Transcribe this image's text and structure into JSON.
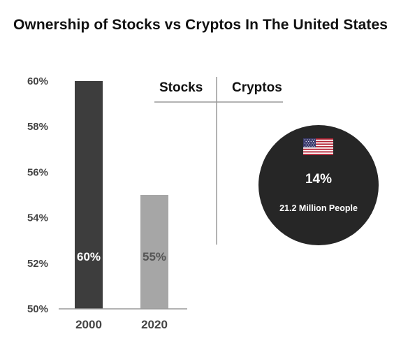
{
  "title": "Ownership of Stocks vs Cryptos In The United States",
  "table": {
    "stocks_label": "Stocks",
    "cryptos_label": "Cryptos"
  },
  "crypto_stat": {
    "percent": "14%",
    "people": "21.2 Million People",
    "flag_icon": "us-flag-icon"
  },
  "colors": {
    "bar_2000": "#3d3d3d",
    "bar_2020": "#a6a6a6",
    "circle": "#262626"
  },
  "chart_data": {
    "type": "bar",
    "categories": [
      "2000",
      "2020"
    ],
    "values": [
      60,
      55
    ],
    "data_labels": [
      "60%",
      "55%"
    ],
    "ytick_labels": [
      "60%",
      "58%",
      "56%",
      "54%",
      "52%",
      "50%"
    ],
    "yticks": [
      60,
      58,
      56,
      54,
      52,
      50
    ],
    "ylim": [
      50,
      60
    ],
    "title": "",
    "xlabel": "",
    "ylabel": "",
    "grid": false
  }
}
